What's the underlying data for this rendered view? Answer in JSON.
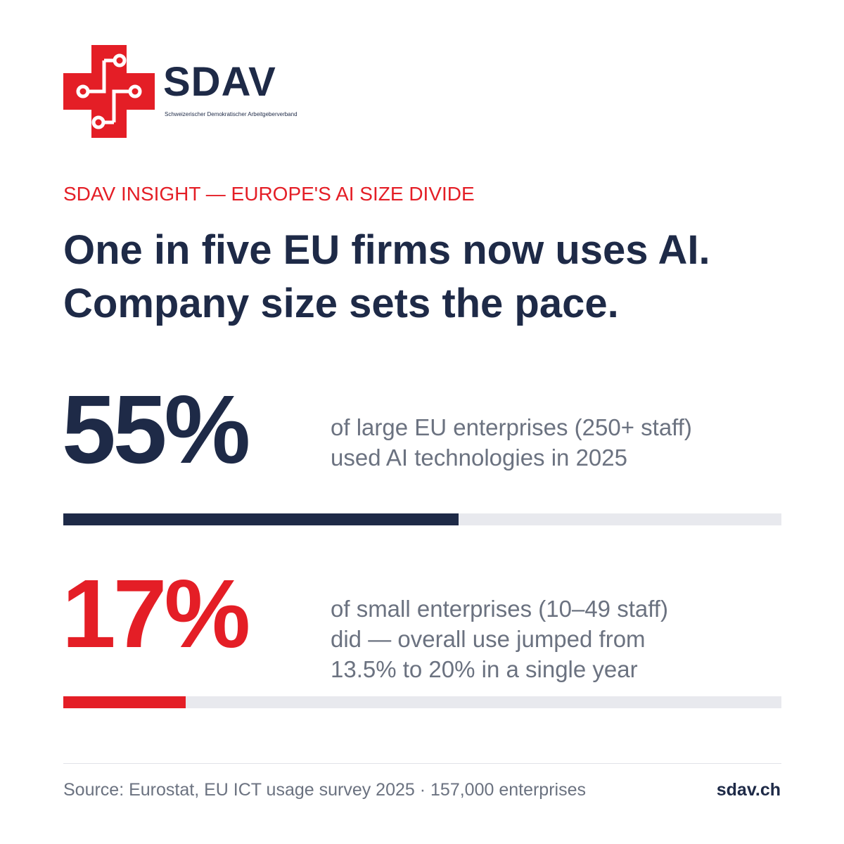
{
  "brand": {
    "name": "SDAV",
    "subtitle": "Schweizerischer Demokratischer Arbeitgeberverband",
    "colors": {
      "primary": "#1e2a47",
      "accent": "#e41e26",
      "muted": "#6b7280",
      "track": "#e8e9ee"
    },
    "logo_icon": "swiss-cross-circuit-icon"
  },
  "eyebrow": "SDAV INSIGHT — EUROPE'S AI SIZE DIVIDE",
  "headline": {
    "line1": "One in five EU firms now uses AI.",
    "line2": "Company size sets the pace."
  },
  "stats": [
    {
      "value_label": "55%",
      "desc_lines": [
        "of large EU enterprises (250+ staff)",
        "used AI technologies in 2025"
      ]
    },
    {
      "value_label": "17%",
      "desc_lines": [
        "of small enterprises (10–49 staff)",
        "did — overall use jumped from",
        "13.5% to 20% in a single year"
      ]
    }
  ],
  "chart_data": {
    "type": "bar",
    "categories": [
      "large EU enterprises (250+ staff)",
      "small enterprises (10–49 staff)"
    ],
    "values": [
      55,
      17
    ],
    "ylim": [
      0,
      100
    ],
    "colors": [
      "#1e2a47",
      "#e41e26"
    ],
    "grid": false
  },
  "footer": {
    "source": "Source: Eurostat, EU ICT usage survey 2025 · 157,000 enterprises",
    "site": "sdav.ch"
  }
}
